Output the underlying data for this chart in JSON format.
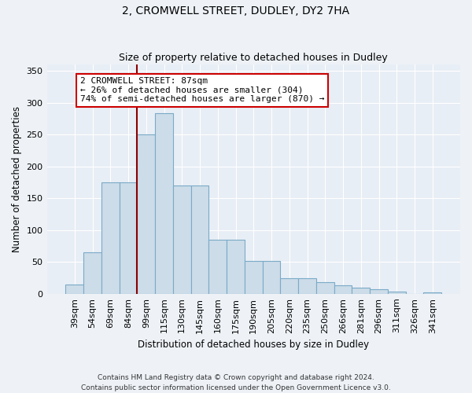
{
  "title1": "2, CROMWELL STREET, DUDLEY, DY2 7HA",
  "title2": "Size of property relative to detached houses in Dudley",
  "xlabel": "Distribution of detached houses by size in Dudley",
  "ylabel": "Number of detached properties",
  "categories": [
    "39sqm",
    "54sqm",
    "69sqm",
    "84sqm",
    "99sqm",
    "115sqm",
    "130sqm",
    "145sqm",
    "160sqm",
    "175sqm",
    "190sqm",
    "205sqm",
    "220sqm",
    "235sqm",
    "250sqm",
    "266sqm",
    "281sqm",
    "296sqm",
    "311sqm",
    "326sqm",
    "341sqm"
  ],
  "values": [
    15,
    65,
    175,
    175,
    250,
    283,
    170,
    170,
    85,
    85,
    52,
    52,
    25,
    25,
    18,
    13,
    10,
    7,
    3,
    0,
    2
  ],
  "bar_color": "#ccdce8",
  "bar_edge_color": "#7aaac8",
  "vline_color": "#8b0000",
  "annotation_text": "2 CROMWELL STREET: 87sqm\n← 26% of detached houses are smaller (304)\n74% of semi-detached houses are larger (870) →",
  "annotation_box_color": "white",
  "annotation_box_edge": "#cc0000",
  "ylim": [
    0,
    360
  ],
  "yticks": [
    0,
    50,
    100,
    150,
    200,
    250,
    300,
    350
  ],
  "footer": "Contains HM Land Registry data © Crown copyright and database right 2024.\nContains public sector information licensed under the Open Government Licence v3.0.",
  "bg_color": "#eef2f7",
  "plot_bg_color": "#e8eef5"
}
